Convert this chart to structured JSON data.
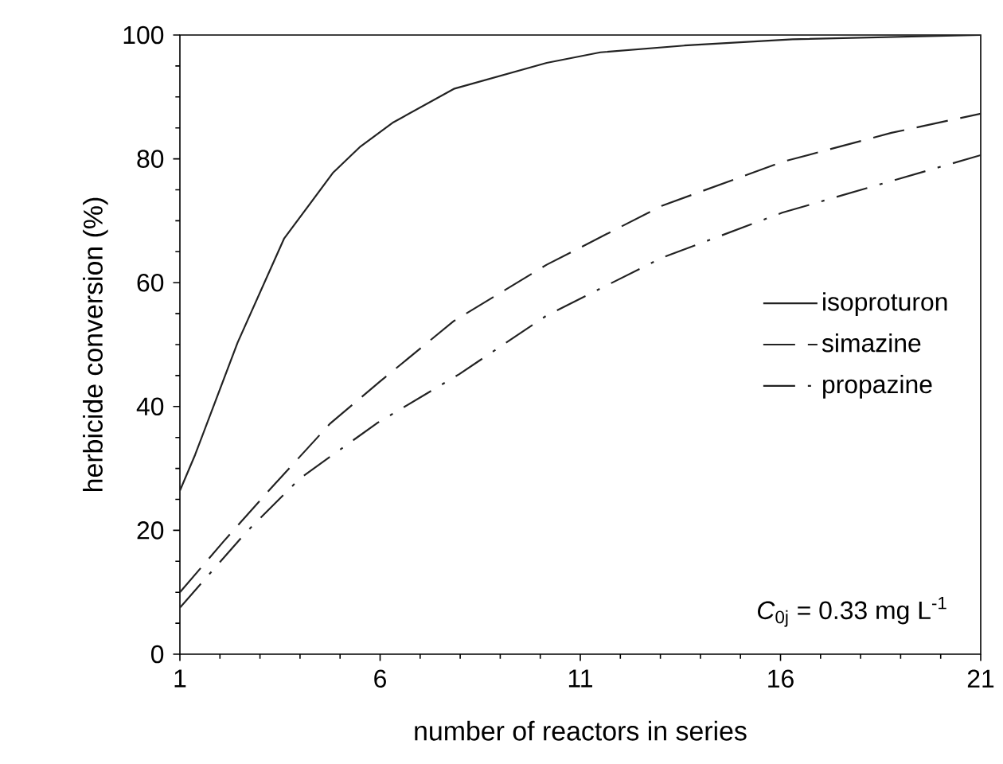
{
  "chart_data": {
    "type": "line",
    "xlabel": "number of reactors in series",
    "ylabel": "herbicide conversion (%)",
    "xlim": [
      1,
      21
    ],
    "xticks": [
      1,
      6,
      11,
      16,
      21
    ],
    "ylim": [
      0,
      100
    ],
    "yticks": [
      0,
      20,
      40,
      60,
      80,
      100
    ],
    "grid": false,
    "legend": "right",
    "marker": "none",
    "annotations": [
      "*C*$_{0j}$ = 0.33 mg L$^{-1}$"
    ],
    "series": [
      {
        "name": "isoproturon",
        "color": "#222222",
        "line_style": "solid",
        "x": [
          1,
          1.38,
          2.44,
          3.6,
          4.83,
          5.51,
          6.33,
          7.84,
          10.16,
          11.5,
          13.6,
          16.3,
          21
        ],
        "values": [
          26.4,
          32.2,
          50.3,
          67.1,
          77.8,
          82,
          85.9,
          91.3,
          95.5,
          97.2,
          98.3,
          99.3,
          100
        ]
      },
      {
        "name": "simazine",
        "color": "#222222",
        "line_style": "dashed",
        "x": [
          1,
          2.09,
          3.26,
          4.76,
          5.99,
          7.84,
          10.16,
          13.03,
          16.04,
          18.77,
          21
        ],
        "values": [
          10,
          18.2,
          26.7,
          37.3,
          44,
          53.8,
          62.9,
          72.4,
          79.5,
          84.2,
          87.3
        ]
      },
      {
        "name": "propazine",
        "color": "#222222",
        "line_style": "dashdot",
        "x": [
          1,
          2.64,
          4.0,
          5.92,
          7.97,
          10.16,
          13.03,
          16.04,
          21
        ],
        "values": [
          7.5,
          19.6,
          28.4,
          37.3,
          45.2,
          54.7,
          64,
          71.3,
          80.6
        ]
      }
    ]
  }
}
